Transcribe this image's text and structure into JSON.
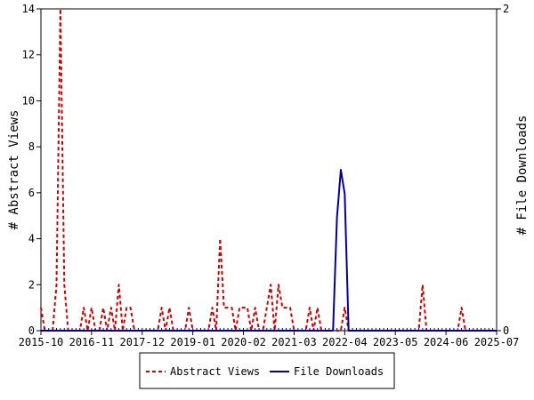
{
  "chart_data": {
    "type": "line",
    "title": "",
    "xlabel": "",
    "ylabel_left": "# Abstract Views",
    "ylabel_right": "# File Downloads",
    "x_range": [
      "2015-10",
      "2025-07"
    ],
    "x_ticks": [
      "2015-10",
      "2016-11",
      "2017-12",
      "2019-01",
      "2020-02",
      "2021-03",
      "2022-04",
      "2023-05",
      "2024-06",
      "2025-07"
    ],
    "y_left_range": [
      0,
      14
    ],
    "y_left_ticks": [
      "0",
      "2",
      "4",
      "6",
      "8",
      "10",
      "12",
      "14"
    ],
    "y_right_range": [
      0,
      2
    ],
    "y_right_ticks": [
      "0",
      "2"
    ],
    "grid": false,
    "legend_position": "bottom-center",
    "series": [
      {
        "name": "Abstract Views",
        "axis": "left",
        "color": "#cc0000",
        "dash": true,
        "points": [
          [
            "2015-10",
            1
          ],
          [
            "2015-11",
            0
          ],
          [
            "2015-12",
            0
          ],
          [
            "2016-01",
            0
          ],
          [
            "2016-02",
            2
          ],
          [
            "2016-03",
            14
          ],
          [
            "2016-04",
            2
          ],
          [
            "2016-05",
            0
          ],
          [
            "2016-06",
            0
          ],
          [
            "2016-07",
            0
          ],
          [
            "2016-08",
            0
          ],
          [
            "2016-09",
            1
          ],
          [
            "2016-10",
            0
          ],
          [
            "2016-11",
            1
          ],
          [
            "2016-12",
            0
          ],
          [
            "2017-01",
            0
          ],
          [
            "2017-02",
            1
          ],
          [
            "2017-03",
            0
          ],
          [
            "2017-04",
            1
          ],
          [
            "2017-05",
            0
          ],
          [
            "2017-06",
            2
          ],
          [
            "2017-07",
            0
          ],
          [
            "2017-08",
            1
          ],
          [
            "2017-09",
            1
          ],
          [
            "2017-10",
            0
          ],
          [
            "2017-11",
            0
          ],
          [
            "2017-12",
            0
          ],
          [
            "2018-01",
            0
          ],
          [
            "2018-02",
            0
          ],
          [
            "2018-03",
            0
          ],
          [
            "2018-04",
            0
          ],
          [
            "2018-05",
            1
          ],
          [
            "2018-06",
            0
          ],
          [
            "2018-07",
            1
          ],
          [
            "2018-08",
            0
          ],
          [
            "2018-09",
            0
          ],
          [
            "2018-10",
            0
          ],
          [
            "2018-11",
            0
          ],
          [
            "2018-12",
            1
          ],
          [
            "2019-01",
            0
          ],
          [
            "2019-02",
            0
          ],
          [
            "2019-03",
            0
          ],
          [
            "2019-04",
            0
          ],
          [
            "2019-05",
            0
          ],
          [
            "2019-06",
            1
          ],
          [
            "2019-07",
            0
          ],
          [
            "2019-08",
            4
          ],
          [
            "2019-09",
            1
          ],
          [
            "2019-10",
            1
          ],
          [
            "2019-11",
            1
          ],
          [
            "2019-12",
            0
          ],
          [
            "2020-01",
            1
          ],
          [
            "2020-02",
            1
          ],
          [
            "2020-03",
            1
          ],
          [
            "2020-04",
            0
          ],
          [
            "2020-05",
            1
          ],
          [
            "2020-06",
            0
          ],
          [
            "2020-07",
            0
          ],
          [
            "2020-08",
            1
          ],
          [
            "2020-09",
            2
          ],
          [
            "2020-10",
            0
          ],
          [
            "2020-11",
            2
          ],
          [
            "2020-12",
            1
          ],
          [
            "2021-01",
            1
          ],
          [
            "2021-02",
            1
          ],
          [
            "2021-03",
            0
          ],
          [
            "2021-04",
            0
          ],
          [
            "2021-05",
            0
          ],
          [
            "2021-06",
            0
          ],
          [
            "2021-07",
            1
          ],
          [
            "2021-08",
            0
          ],
          [
            "2021-09",
            1
          ],
          [
            "2021-10",
            0
          ],
          [
            "2021-11",
            0
          ],
          [
            "2021-12",
            0
          ],
          [
            "2022-01",
            0
          ],
          [
            "2022-02",
            0
          ],
          [
            "2022-03",
            0
          ],
          [
            "2022-04",
            1
          ],
          [
            "2022-05",
            0
          ],
          [
            "2023-11",
            0
          ],
          [
            "2023-12",
            2
          ],
          [
            "2024-01",
            0
          ],
          [
            "2024-09",
            0
          ],
          [
            "2024-10",
            1
          ],
          [
            "2024-11",
            0
          ],
          [
            "2025-07",
            0
          ]
        ]
      },
      {
        "name": "File Downloads",
        "axis": "right",
        "color": "#000099",
        "dash": false,
        "points": [
          [
            "2015-10",
            0
          ],
          [
            "2022-01",
            0
          ],
          [
            "2022-02",
            0.7
          ],
          [
            "2022-03",
            1.0
          ],
          [
            "2022-04",
            0.85
          ],
          [
            "2022-05",
            0
          ],
          [
            "2025-07",
            0
          ]
        ]
      }
    ]
  }
}
